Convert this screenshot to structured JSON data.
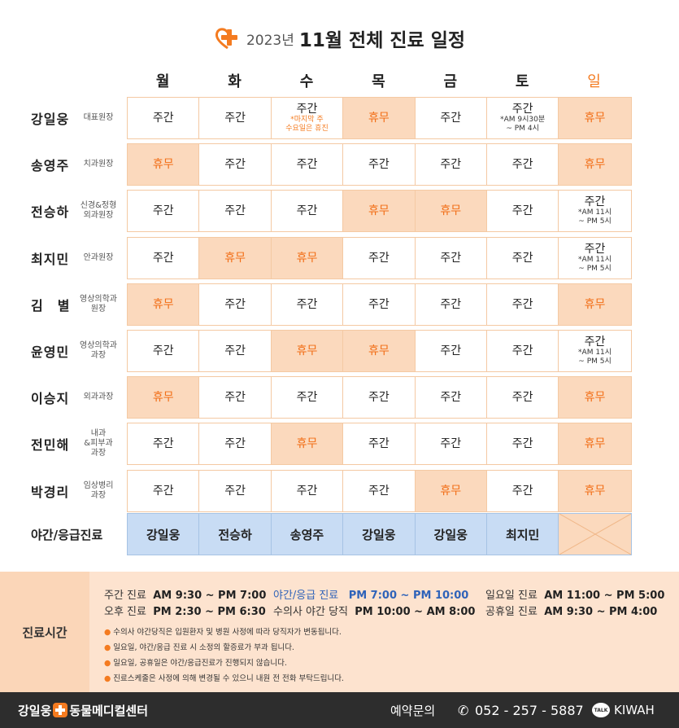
{
  "header": {
    "year": "2023년",
    "title": "11월 전체 진료 일정"
  },
  "days": [
    "월",
    "화",
    "수",
    "목",
    "금",
    "토",
    "일"
  ],
  "doctors": [
    {
      "name": "강일웅",
      "role": "대표원장",
      "cells": [
        {
          "text": "주간"
        },
        {
          "text": "주간"
        },
        {
          "text": "주간",
          "sub": "*마지막 주\n수요일은 휴진",
          "sub_color": "orange"
        },
        {
          "text": "휴무",
          "off": true
        },
        {
          "text": "주간"
        },
        {
          "text": "주간",
          "sub": "*AM 9시30분\n~ PM 4시"
        },
        {
          "text": "휴무",
          "off": true
        }
      ]
    },
    {
      "name": "송영주",
      "role": "치과원장",
      "cells": [
        {
          "text": "휴무",
          "off": true
        },
        {
          "text": "주간"
        },
        {
          "text": "주간"
        },
        {
          "text": "주간"
        },
        {
          "text": "주간"
        },
        {
          "text": "주간"
        },
        {
          "text": "휴무",
          "off": true
        }
      ]
    },
    {
      "name": "전승하",
      "role": "신경&정형\n외과원장",
      "cells": [
        {
          "text": "주간"
        },
        {
          "text": "주간"
        },
        {
          "text": "주간"
        },
        {
          "text": "휴무",
          "off": true
        },
        {
          "text": "휴무",
          "off": true
        },
        {
          "text": "주간"
        },
        {
          "text": "주간",
          "sub": "*AM 11시\n~ PM 5시"
        }
      ]
    },
    {
      "name": "최지민",
      "role": "안과원장",
      "cells": [
        {
          "text": "주간"
        },
        {
          "text": "휴무",
          "off": true
        },
        {
          "text": "휴무",
          "off": true
        },
        {
          "text": "주간"
        },
        {
          "text": "주간"
        },
        {
          "text": "주간"
        },
        {
          "text": "주간",
          "sub": "*AM 11시\n~ PM 5시"
        }
      ]
    },
    {
      "name": "김　별",
      "role": "영상의학과\n원장",
      "cells": [
        {
          "text": "휴무",
          "off": true
        },
        {
          "text": "주간"
        },
        {
          "text": "주간"
        },
        {
          "text": "주간"
        },
        {
          "text": "주간"
        },
        {
          "text": "주간"
        },
        {
          "text": "휴무",
          "off": true
        }
      ]
    },
    {
      "name": "윤영민",
      "role": "영상의학과\n과장",
      "cells": [
        {
          "text": "주간"
        },
        {
          "text": "주간"
        },
        {
          "text": "휴무",
          "off": true
        },
        {
          "text": "휴무",
          "off": true
        },
        {
          "text": "주간"
        },
        {
          "text": "주간"
        },
        {
          "text": "주간",
          "sub": "*AM 11시\n~ PM 5시"
        }
      ]
    },
    {
      "name": "이승지",
      "role": "외과과장",
      "cells": [
        {
          "text": "휴무",
          "off": true
        },
        {
          "text": "주간"
        },
        {
          "text": "주간"
        },
        {
          "text": "주간"
        },
        {
          "text": "주간"
        },
        {
          "text": "주간"
        },
        {
          "text": "휴무",
          "off": true
        }
      ]
    },
    {
      "name": "전민해",
      "role": "내과\n&피부과\n과장",
      "cells": [
        {
          "text": "주간"
        },
        {
          "text": "주간"
        },
        {
          "text": "휴무",
          "off": true
        },
        {
          "text": "주간"
        },
        {
          "text": "주간"
        },
        {
          "text": "주간"
        },
        {
          "text": "휴무",
          "off": true
        }
      ]
    },
    {
      "name": "박경리",
      "role": "임상병리\n과장",
      "cells": [
        {
          "text": "주간"
        },
        {
          "text": "주간"
        },
        {
          "text": "주간"
        },
        {
          "text": "주간"
        },
        {
          "text": "휴무",
          "off": true
        },
        {
          "text": "주간"
        },
        {
          "text": "휴무",
          "off": true
        }
      ]
    }
  ],
  "night": {
    "label": "야간/응급진료",
    "doctors": [
      "강일웅",
      "전승하",
      "송영주",
      "강일웅",
      "강일웅",
      "최지민",
      ""
    ]
  },
  "hours": {
    "label": "진료시간",
    "day_label": "주간 진료",
    "day_time": "AM 9:30 ~ PM 7:00",
    "afternoon_label": "오후 진료",
    "afternoon_time": "PM 2:30 ~ PM 6:30",
    "night_label": "야간/응급 진료",
    "night_time": "PM 7:00 ~ PM 10:00",
    "vet_night_label": "수의사 야간 당직",
    "vet_night_time": "PM 10:00 ~ AM 8:00",
    "sunday_label": "일요일 진료",
    "sunday_time": "AM 11:00 ~ PM 5:00",
    "holiday_label": "공휴일 진료",
    "holiday_time": "AM 9:30 ~ PM 4:00",
    "notes": [
      "수의사 야간당직은 입원환자 및 병원 사정에 따라 당직자가 변동됩니다.",
      "일요일, 야간/응급 진료 시 소정의 할증료가 부과 됩니다.",
      "일요일, 공휴일은 야간/응급진료가 진행되지 않습니다.",
      "진료스케줄은 사정에 의해 변경될 수 있으니 내원 전 전화 부탁드립니다."
    ]
  },
  "footer": {
    "brand_left": "강일웅",
    "brand_right": "동물메디컬센터",
    "reserve": "예약문의",
    "phone": "052 - 257 - 5887",
    "talk": "TALK",
    "kakao": "KIWAH"
  },
  "colors": {
    "accent": "#f47b20",
    "off_bg": "#fbd9bd",
    "night_bg": "#c8dcf4",
    "footer_bg": "#2d2d2d"
  }
}
